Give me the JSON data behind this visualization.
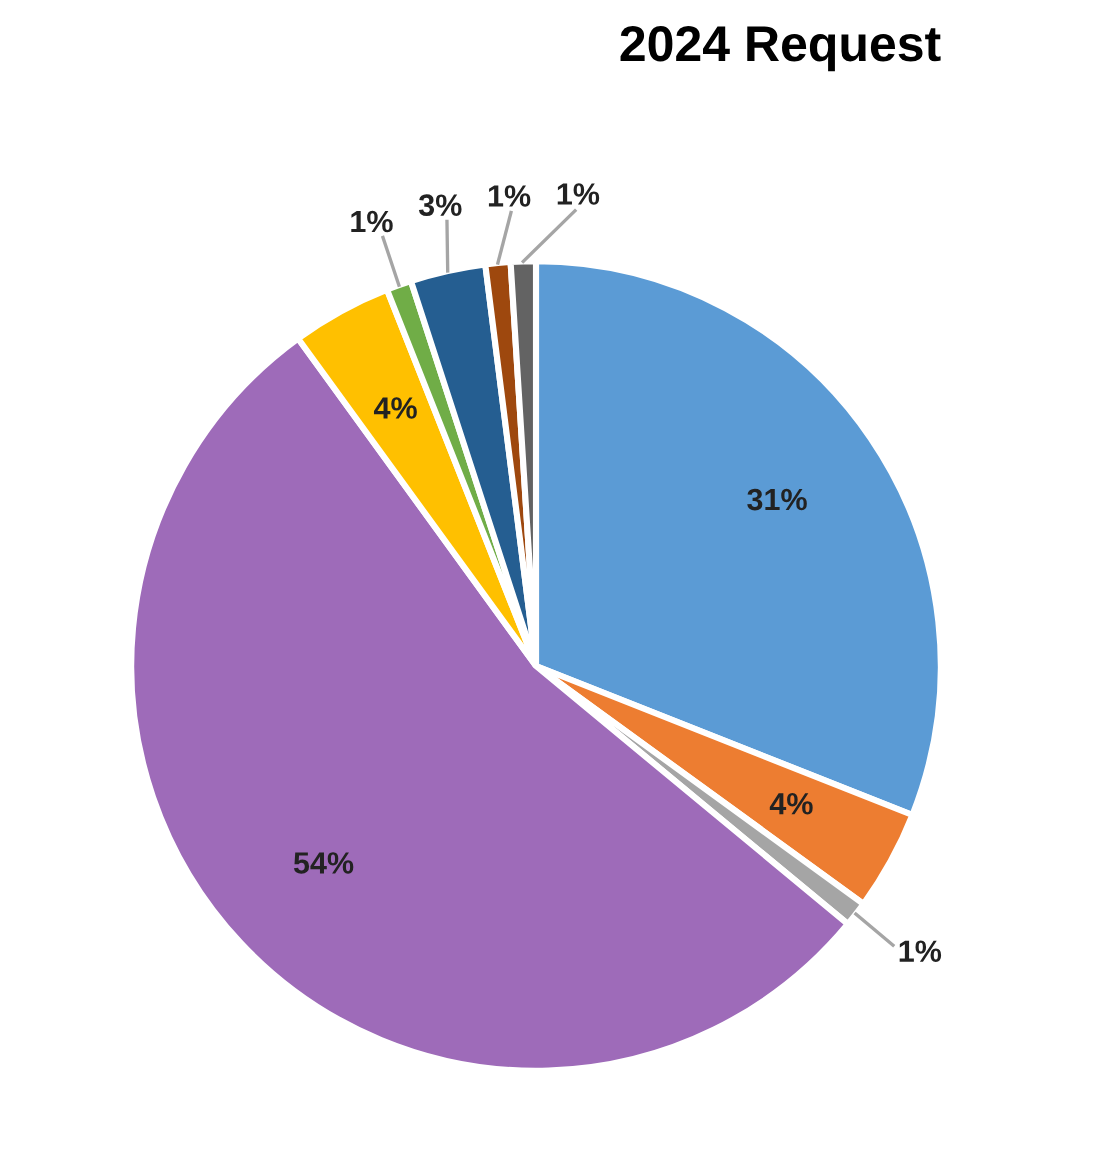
{
  "chart_data": {
    "type": "pie",
    "title": "2024 Request",
    "categories": [
      null,
      null,
      null,
      null,
      null,
      null,
      null,
      null,
      null
    ],
    "values": [
      31,
      4,
      1,
      54,
      4,
      1,
      3,
      1,
      1
    ],
    "colors": [
      "#5b9bd5",
      "#ed7d31",
      "#a5a5a5",
      "#9e6bb9",
      "#ffc000",
      "#70ad47",
      "#255e91",
      "#9e480e",
      "#636363"
    ],
    "value_labels": [
      "31%",
      "4%",
      "1%",
      "54%",
      "4%",
      "1%",
      "3%",
      "1%",
      "1%"
    ],
    "legend": false
  }
}
